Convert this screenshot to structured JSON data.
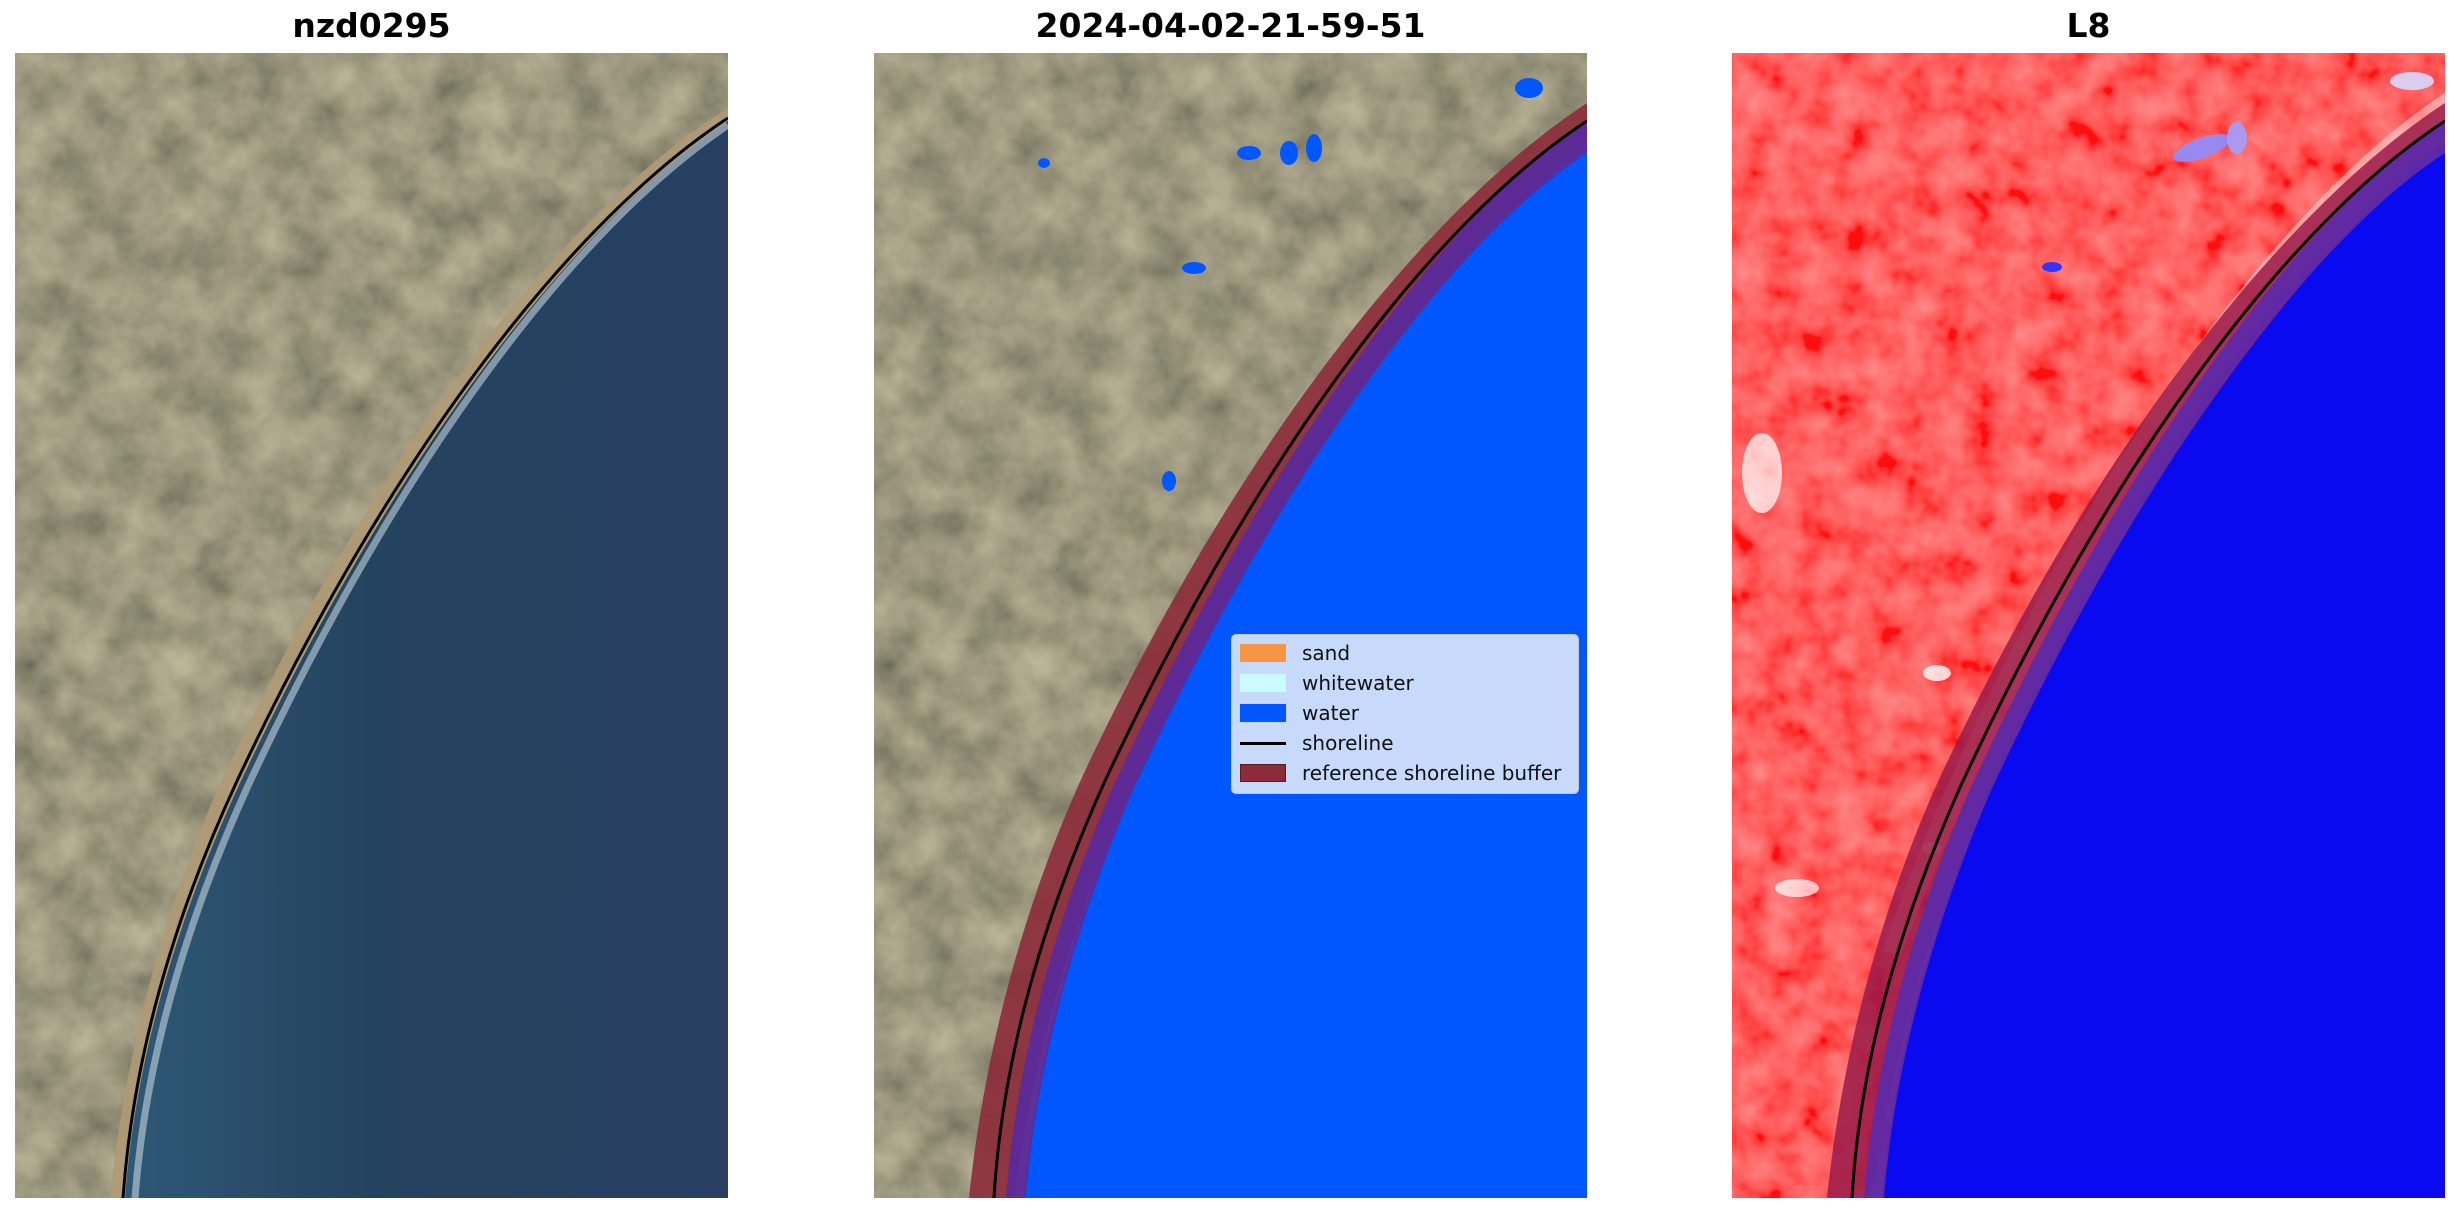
{
  "panels": [
    {
      "title": "nzd0295"
    },
    {
      "title": "2024-04-02-21-59-51"
    },
    {
      "title": "L8"
    }
  ],
  "legend": {
    "placement": "center-right of middle panel",
    "items": [
      {
        "label": "sand",
        "color": "#f79545",
        "kind": "patch"
      },
      {
        "label": "whitewater",
        "color": "#c9fbff",
        "kind": "patch"
      },
      {
        "label": "water",
        "color": "#0057ff",
        "kind": "patch"
      },
      {
        "label": "shoreline",
        "color": "#000000",
        "kind": "line"
      },
      {
        "label": "reference shoreline buffer",
        "color": "#8c2b3a",
        "kind": "patch"
      }
    ]
  },
  "colors": {
    "land_rgb": "#5e5a40",
    "ocean_rgb": "#2f4b6d",
    "classified_water": "#0057ff",
    "buffer": "#8c2b3a",
    "buffer_overlap": "#5b2a9a",
    "index_land": "#ff2b2b",
    "index_water": "#0a0af0"
  }
}
